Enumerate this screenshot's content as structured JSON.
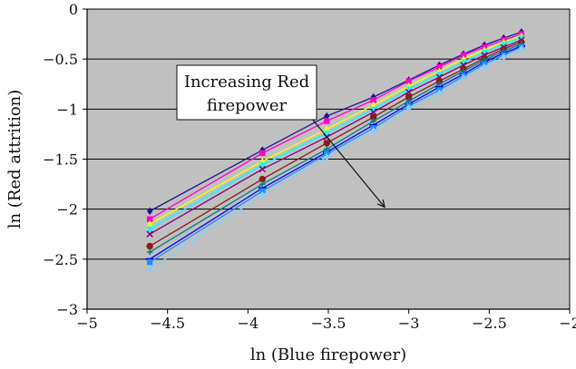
{
  "chart_data": {
    "type": "line",
    "title": "",
    "xlabel": "ln (Blue firepower)",
    "ylabel": "ln (Red attrition)",
    "xlim": [
      -5,
      -2
    ],
    "ylim": [
      -3,
      0
    ],
    "xticks": [
      -5,
      -4.5,
      -4,
      -3.5,
      -3,
      -2.5,
      -2
    ],
    "yticks": [
      -3,
      -2.5,
      -2,
      -1.5,
      -1,
      -0.5,
      0
    ],
    "xtick_labels": [
      "−5",
      "−4.5",
      "−4",
      "−3.5",
      "−3",
      "−2.5",
      "−2"
    ],
    "ytick_labels": [
      "−3",
      "−2.5",
      "−2",
      "−1.5",
      "−1",
      "−0.5",
      "0"
    ],
    "grid": "horizontal",
    "plot_background": "#c0c0c0",
    "annotation": {
      "lines": [
        "Increasing Red",
        "firepower"
      ],
      "arrow_from": [
        -3.6,
        -1.1
      ],
      "arrow_to": [
        -3.15,
        -1.98
      ]
    },
    "x": [
      -4.61,
      -3.91,
      -3.51,
      -3.22,
      -3.0,
      -2.81,
      -2.66,
      -2.53,
      -2.41,
      -2.3
    ],
    "series": [
      {
        "color": "#1a1a8c",
        "marker": "diamond",
        "values": [
          -2.02,
          -1.41,
          -1.07,
          -0.88,
          -0.71,
          -0.56,
          -0.45,
          -0.36,
          -0.29,
          -0.23
        ]
      },
      {
        "color": "#ff00cc",
        "marker": "square",
        "values": [
          -2.1,
          -1.44,
          -1.12,
          -0.91,
          -0.72,
          -0.58,
          -0.46,
          -0.38,
          -0.31,
          -0.25
        ]
      },
      {
        "color": "#ffff00",
        "marker": "triangle",
        "values": [
          -2.15,
          -1.52,
          -1.2,
          -0.96,
          -0.77,
          -0.62,
          -0.5,
          -0.41,
          -0.33,
          -0.27
        ]
      },
      {
        "color": "#00ffff",
        "marker": "cross",
        "values": [
          -2.2,
          -1.56,
          -1.24,
          -1.0,
          -0.8,
          -0.65,
          -0.53,
          -0.43,
          -0.35,
          -0.29
        ]
      },
      {
        "color": "#800080",
        "marker": "x",
        "values": [
          -2.25,
          -1.6,
          -1.28,
          -1.03,
          -0.83,
          -0.68,
          -0.56,
          -0.46,
          -0.38,
          -0.31
        ]
      },
      {
        "color": "#8b1a1a",
        "marker": "circle",
        "values": [
          -2.37,
          -1.7,
          -1.34,
          -1.08,
          -0.88,
          -0.72,
          -0.6,
          -0.49,
          -0.4,
          -0.33
        ]
      },
      {
        "color": "#008080",
        "marker": "plus",
        "values": [
          -2.43,
          -1.75,
          -1.4,
          -1.12,
          -0.92,
          -0.75,
          -0.62,
          -0.51,
          -0.42,
          -0.35
        ]
      },
      {
        "color": "#0000ff",
        "marker": "dash",
        "values": [
          -2.5,
          -1.79,
          -1.43,
          -1.16,
          -0.95,
          -0.78,
          -0.65,
          -0.53,
          -0.44,
          -0.37
        ]
      },
      {
        "color": "#1e90ff",
        "marker": "square",
        "values": [
          -2.53,
          -1.82,
          -1.45,
          -1.19,
          -0.97,
          -0.81,
          -0.67,
          -0.55,
          -0.46,
          -0.38
        ]
      },
      {
        "color": "#87cefa",
        "marker": "diamond",
        "values": [
          -2.6,
          -1.86,
          -1.48,
          -1.22,
          -0.99,
          -0.84,
          -0.69,
          -0.58,
          -0.48,
          -0.4
        ]
      }
    ]
  }
}
